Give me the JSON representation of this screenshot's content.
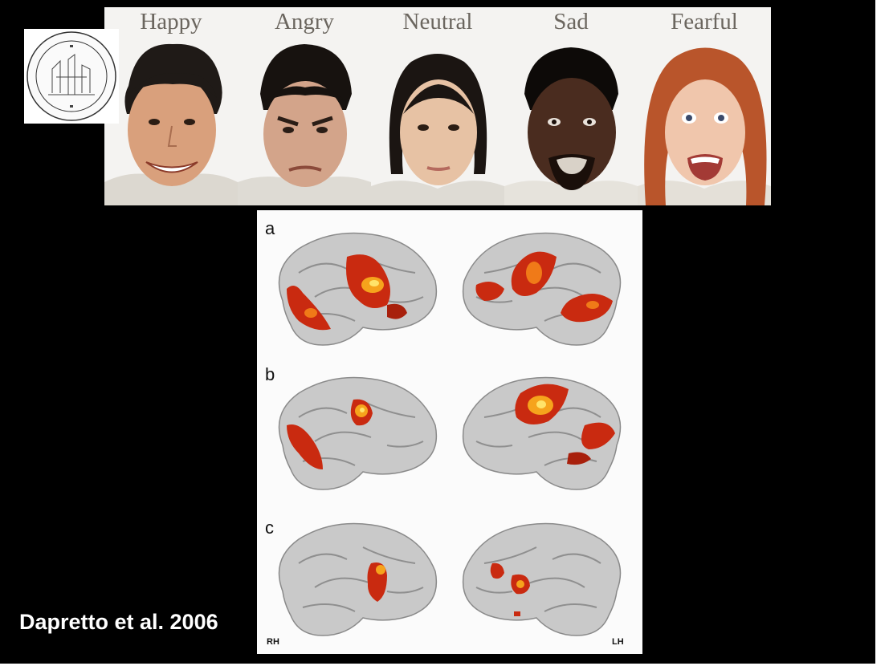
{
  "faces": {
    "labels": [
      "Happy",
      "Angry",
      "Neutral",
      "Sad",
      "Fearful"
    ]
  },
  "brain_panel": {
    "rows": [
      "a",
      "b",
      "c"
    ],
    "left_hemisphere_label": "RH",
    "right_hemisphere_label": "LH"
  },
  "citation": "Dapretto et al. 2006",
  "colors": {
    "background": "#000000",
    "activation": "#d62a10",
    "activation_core": "#ffd23a",
    "brain_surface": "#c9c9c9"
  }
}
